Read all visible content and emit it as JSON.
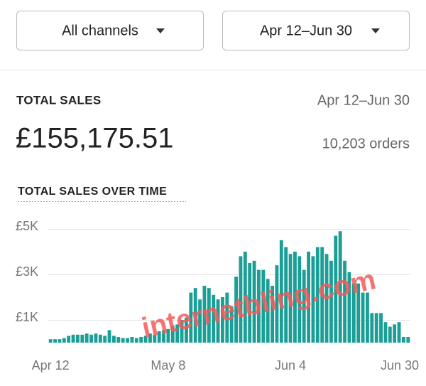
{
  "filters": {
    "channel": "All channels",
    "date_range": "Apr 12–Jun 30"
  },
  "summary": {
    "label": "TOTAL SALES",
    "date_range": "Apr 12–Jun 30",
    "total": "£155,175.51",
    "orders": "10,203 orders"
  },
  "watermark": "internetbling.com",
  "chart_data": {
    "type": "bar",
    "title": "TOTAL SALES OVER TIME",
    "color": "#1a9e96",
    "grid": true,
    "categories": [
      "Apr 12",
      null,
      null,
      null,
      null,
      null,
      null,
      null,
      null,
      null,
      null,
      null,
      null,
      null,
      null,
      null,
      null,
      null,
      null,
      null,
      null,
      null,
      null,
      null,
      null,
      null,
      "May 8",
      null,
      null,
      null,
      null,
      null,
      null,
      null,
      null,
      null,
      null,
      null,
      null,
      null,
      null,
      null,
      null,
      null,
      null,
      null,
      null,
      null,
      null,
      null,
      null,
      null,
      null,
      "Jun 4",
      null,
      null,
      null,
      null,
      null,
      null,
      null,
      null,
      null,
      null,
      null,
      null,
      null,
      null,
      null,
      null,
      null,
      null,
      null,
      null,
      null,
      null,
      null,
      null,
      null,
      "Jun 30"
    ],
    "values": [
      150,
      150,
      150,
      200,
      300,
      350,
      350,
      350,
      400,
      350,
      400,
      350,
      300,
      550,
      300,
      250,
      200,
      200,
      250,
      200,
      250,
      300,
      400,
      350,
      500,
      550,
      600,
      750,
      800,
      1000,
      1100,
      2200,
      2400,
      1900,
      2500,
      2400,
      2100,
      1900,
      2000,
      2200,
      1600,
      2900,
      3800,
      4000,
      3500,
      3600,
      3200,
      3200,
      2800,
      2500,
      3400,
      4500,
      4200,
      3900,
      4000,
      3800,
      3200,
      4000,
      3800,
      4200,
      4200,
      3900,
      3600,
      4700,
      4900,
      3600,
      3100,
      2600,
      2600,
      2200,
      2200,
      1300,
      1300,
      1300,
      900,
      700,
      800,
      900,
      250,
      250
    ],
    "ylim": [
      0,
      5000
    ],
    "yticks": [
      {
        "value": 1000,
        "label": "£1K"
      },
      {
        "value": 3000,
        "label": "£3K"
      },
      {
        "value": 5000,
        "label": "£5K"
      }
    ]
  }
}
